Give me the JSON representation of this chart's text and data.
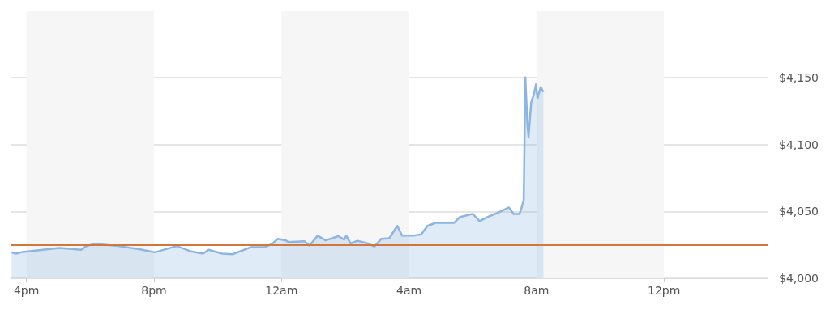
{
  "chart_data": {
    "type": "area",
    "xlim": [
      "--01-01T15:30",
      "--01-02T15:15"
    ],
    "ylim": [
      4000,
      4200
    ],
    "xticks": [
      {
        "value": "--01-01T16:00",
        "label": "4pm"
      },
      {
        "value": "--01-01T20:00",
        "label": "8pm"
      },
      {
        "value": "--01-02T00:00",
        "label": "12am"
      },
      {
        "value": "--01-02T04:00",
        "label": "4am"
      },
      {
        "value": "--01-02T08:00",
        "label": "8am"
      },
      {
        "value": "--01-02T12:00",
        "label": "12pm"
      }
    ],
    "yticks": [
      {
        "value": 4000,
        "label": "$4,000"
      },
      {
        "value": 4050,
        "label": "$4,050"
      },
      {
        "value": 4100,
        "label": "$4,100"
      },
      {
        "value": 4150,
        "label": "$4,150"
      }
    ],
    "grid": "y",
    "marker": "none",
    "series": [
      {
        "color": "#8cb6e1",
        "x": [
          "--01-01T15:32",
          "--01-01T15:40",
          "--01-01T15:53",
          "--01-01T17:02",
          "--01-01T17:43",
          "--01-01T17:53",
          "--01-01T18:08",
          "--01-01T18:53",
          "--01-01T19:32",
          "--01-01T20:02",
          "--01-01T20:23",
          "--01-01T20:43",
          "--01-01T21:08",
          "--01-01T21:32",
          "--01-01T21:43",
          "--01-01T22:08",
          "--01-01T22:28",
          "--01-01T23:02",
          "--01-01T23:28",
          "--01-01T23:43",
          "--01-01T23:53",
          "--01-02T00:08",
          "--01-02T00:13",
          "--01-02T00:43",
          "--01-02T00:53",
          "--01-02T01:08",
          "--01-02T01:23",
          "--01-02T01:47",
          "--01-02T01:58",
          "--01-02T02:02",
          "--01-02T02:10",
          "--01-02T02:23",
          "--01-02T02:43",
          "--01-02T02:55",
          "--01-02T03:08",
          "--01-02T03:23",
          "--01-02T03:38",
          "--01-02T03:47",
          "--01-02T04:08",
          "--01-02T04:23",
          "--01-02T04:35",
          "--01-02T04:50",
          "--01-02T05:00",
          "--01-02T05:25",
          "--01-02T05:35",
          "--01-02T06:00",
          "--01-02T06:13",
          "--01-02T06:30",
          "--01-02T06:50",
          "--01-02T07:08",
          "--01-02T07:17",
          "--01-02T07:28",
          "--01-02T07:32",
          "--01-02T07:36",
          "--01-02T07:39",
          "--01-02T07:43",
          "--01-02T07:45",
          "--01-02T07:50",
          "--01-02T07:55",
          "--01-02T07:59",
          "--01-02T08:02",
          "--01-02T08:08",
          "--01-02T08:13"
        ],
        "values": [
          4019.4,
          4018.4,
          4019.7,
          4022.6,
          4021.3,
          4024.1,
          4025.7,
          4024.1,
          4021.8,
          4019.4,
          4021.8,
          4024.1,
          4020.3,
          4018.4,
          4021.3,
          4018.4,
          4018.0,
          4023.2,
          4023.2,
          4025.7,
          4029.5,
          4028.3,
          4027.0,
          4027.6,
          4024.5,
          4031.8,
          4028.3,
          4031.4,
          4028.9,
          4031.8,
          4026.0,
          4028.0,
          4026.0,
          4023.7,
          4029.5,
          4029.9,
          4039.1,
          4031.8,
          4031.8,
          4032.8,
          4039.1,
          4041.4,
          4041.4,
          4041.4,
          4045.6,
          4048.1,
          4042.7,
          4046.2,
          4049.4,
          4052.9,
          4048.1,
          4048.1,
          4052.9,
          4058.6,
          4150.0,
          4114.2,
          4105.6,
          4131.4,
          4137.2,
          4144.8,
          4134.3,
          4142.9,
          4139.1
        ]
      }
    ],
    "ref_lines": [
      {
        "axis": "y",
        "value": 4025,
        "color": "#d2763e",
        "line_style": "solid"
      }
    ],
    "bands": [
      {
        "axis": "x",
        "from": "--01-01T16:00",
        "to": "--01-01T20:00",
        "color": "#f6f6f6"
      },
      {
        "axis": "x",
        "from": "--01-02T00:00",
        "to": "--01-02T04:00",
        "color": "#f6f6f6"
      },
      {
        "axis": "x",
        "from": "--01-02T08:00",
        "to": "--01-02T12:00",
        "color": "#f6f6f6"
      }
    ]
  }
}
